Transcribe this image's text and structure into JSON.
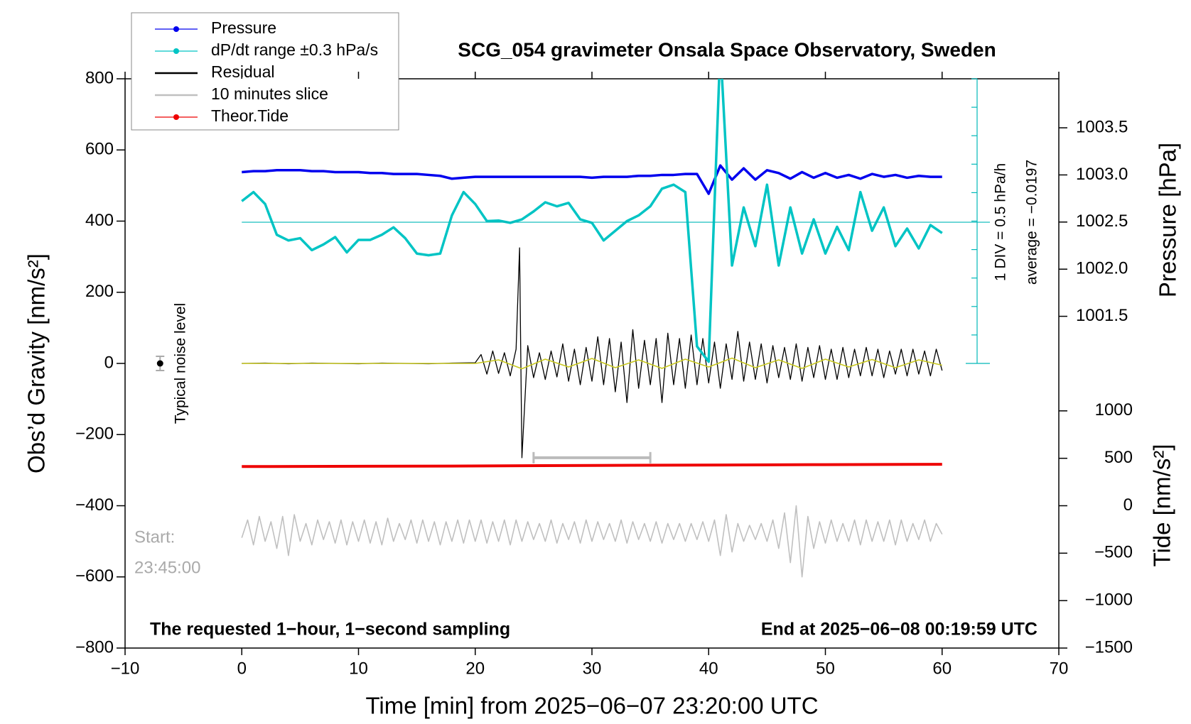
{
  "chart_data": {
    "type": "line",
    "title": "SCG_054 gravimeter Onsala Space Observatory, Sweden",
    "xlabel": "Time [min] from 2025−06−07 23:20:00 UTC",
    "ylabel": "Obs’d Gravity [nm/s²]",
    "y2label": "Pressure [hPa]",
    "y3label": "Tide [nm/s²]",
    "annotations": {
      "div": "1 DIV = 0.5 hPa/h",
      "average": "average = −0.0197",
      "noise": "Typical noise level",
      "start": "Start:",
      "start_time": "23:45:00",
      "sampling": "The requested 1−hour, 1−second sampling",
      "end": "End at 2025−06−08 00:19:59 UTC"
    },
    "xlim": [
      -10,
      70
    ],
    "xticks": [
      {
        "value": -10,
        "label": "−10"
      },
      0,
      10,
      20,
      30,
      40,
      50,
      60,
      70
    ],
    "ylim": [
      -800,
      800
    ],
    "yticks": [
      {
        "value": -800,
        "label": "−800"
      },
      {
        "value": -600,
        "label": "−600"
      },
      {
        "value": -400,
        "label": "−400"
      },
      {
        "value": -200,
        "label": "−200"
      },
      0,
      200,
      400,
      600,
      800
    ],
    "y2lim": [
      997.98,
      1004.02
    ],
    "y2ticks": [
      1001.5,
      {
        "value": 1002,
        "label": "1002.0"
      },
      1002.5,
      {
        "value": 1003,
        "label": "1003.0"
      },
      1003.5
    ],
    "y3lim": [
      -1500,
      4500
    ],
    "y3ticks": [
      {
        "value": -1500,
        "label": "−1500"
      },
      {
        "value": -1000,
        "label": "−1000"
      },
      {
        "value": -500,
        "label": "−500"
      },
      0,
      500,
      1000
    ],
    "dpdt_lim": [
      -2.5,
      2.5
    ],
    "dpdt_ticks": [
      -2.5,
      -2,
      -1.5,
      -1,
      -0.5,
      0,
      0.5,
      1,
      1.5,
      2,
      2.5
    ],
    "dpdt_average": -0.0197,
    "series": [
      {
        "name": "Pressure",
        "color": "#0000ee",
        "axis": "y2",
        "markers": true,
        "x": [
          0,
          1,
          2,
          3,
          4,
          5,
          6,
          7,
          8,
          9,
          10,
          11,
          12,
          13,
          14,
          15,
          16,
          17,
          18,
          19,
          20,
          21,
          22,
          23,
          24,
          25,
          26,
          27,
          28,
          29,
          30,
          31,
          32,
          33,
          34,
          35,
          36,
          37,
          38,
          39,
          40,
          41,
          42,
          43,
          44,
          45,
          46,
          47,
          48,
          49,
          50,
          51,
          52,
          53,
          54,
          55,
          56,
          57,
          58,
          59,
          60
        ],
        "values": [
          1003.03,
          1003.04,
          1003.04,
          1003.05,
          1003.05,
          1003.05,
          1003.04,
          1003.04,
          1003.03,
          1003.03,
          1003.03,
          1003.02,
          1003.02,
          1003.01,
          1003.01,
          1003.01,
          1003.0,
          1002.99,
          1002.96,
          1002.97,
          1002.98,
          1002.98,
          1002.98,
          1002.98,
          1002.98,
          1002.98,
          1002.98,
          1002.98,
          1002.98,
          1002.98,
          1002.97,
          1002.98,
          1002.98,
          1002.98,
          1002.99,
          1002.99,
          1003.0,
          1003.0,
          1003.01,
          1003.01,
          1002.8,
          1003.1,
          1002.95,
          1003.07,
          1002.95,
          1003.05,
          1003.02,
          1002.96,
          1003.03,
          1002.97,
          1003.02,
          1002.97,
          1003.0,
          1002.96,
          1003.01,
          1002.98,
          1003.0,
          1002.97,
          1002.99,
          1002.98,
          1002.98
        ]
      },
      {
        "name": "dP/dt range ±0.3 hPa/s",
        "color": "#00c4c4",
        "axis": "dpdt",
        "markers": true,
        "x": [
          0,
          1,
          2,
          3,
          4,
          5,
          6,
          7,
          8,
          9,
          10,
          11,
          12,
          13,
          14,
          15,
          16,
          17,
          18,
          19,
          20,
          21,
          22,
          23,
          24,
          25,
          26,
          27,
          28,
          29,
          30,
          31,
          32,
          33,
          34,
          35,
          36,
          37,
          38,
          39,
          40,
          41,
          42,
          43,
          44,
          45,
          46,
          47,
          48,
          49,
          50,
          51,
          52,
          53,
          54,
          55,
          56,
          57,
          58,
          59,
          60
        ],
        "values": [
          0.35,
          0.51,
          0.3,
          -0.24,
          -0.34,
          -0.3,
          -0.51,
          -0.41,
          -0.28,
          -0.55,
          -0.33,
          -0.33,
          -0.24,
          -0.11,
          -0.3,
          -0.57,
          -0.6,
          -0.57,
          0.1,
          0.51,
          0.3,
          0.0,
          0.01,
          -0.03,
          0.03,
          0.17,
          0.33,
          0.26,
          0.32,
          0.03,
          -0.03,
          -0.34,
          -0.17,
          0.0,
          0.1,
          0.26,
          0.57,
          0.64,
          0.51,
          -2.2,
          -2.47,
          3.07,
          -0.78,
          0.24,
          -0.44,
          0.64,
          -0.78,
          0.24,
          -0.57,
          0.03,
          -0.57,
          -0.1,
          -0.51,
          0.51,
          -0.17,
          0.24,
          -0.44,
          -0.13,
          -0.48,
          -0.07,
          -0.21
        ]
      },
      {
        "name": "Residual",
        "color": "#000000",
        "x": [
          0,
          2,
          4,
          6,
          8,
          10,
          12,
          14,
          16,
          18,
          20,
          20.5,
          21,
          21.5,
          22,
          22.5,
          23,
          23.5,
          23.8,
          24,
          24.5,
          25,
          25.5,
          26,
          26.5,
          27,
          27.5,
          28,
          28.5,
          29,
          29.5,
          30,
          30.5,
          31,
          31.5,
          32,
          32.5,
          33,
          33.5,
          34,
          34.5,
          35,
          35.5,
          36,
          36.5,
          37,
          37.5,
          38,
          38.5,
          39,
          39.5,
          40,
          40.5,
          41,
          41.5,
          42,
          42.5,
          43,
          43.5,
          44,
          44.5,
          45,
          45.5,
          46,
          46.5,
          47,
          47.5,
          48,
          48.5,
          49,
          49.5,
          50,
          50.5,
          51,
          51.5,
          52,
          52.5,
          53,
          53.5,
          54,
          54.5,
          55,
          55.5,
          56,
          56.5,
          57,
          57.5,
          58,
          58.5,
          59,
          59.5,
          60
        ],
        "values": [
          0,
          1,
          -1,
          1,
          0,
          -1,
          1,
          0,
          -1,
          1,
          2,
          25,
          -30,
          35,
          -28,
          30,
          -35,
          40,
          325,
          -265,
          50,
          -40,
          30,
          -45,
          35,
          -38,
          55,
          -50,
          40,
          -60,
          45,
          -50,
          75,
          -60,
          70,
          -80,
          60,
          -110,
          95,
          -70,
          65,
          -60,
          70,
          -110,
          85,
          -60,
          70,
          -70,
          80,
          -60,
          70,
          -55,
          60,
          -70,
          55,
          -45,
          90,
          -50,
          60,
          -45,
          55,
          -55,
          50,
          -40,
          45,
          -45,
          55,
          -50,
          45,
          -40,
          50,
          -45,
          40,
          -45,
          45,
          -40,
          40,
          -35,
          45,
          -35,
          40,
          -40,
          35,
          -30,
          40,
          -35,
          40,
          -30,
          35,
          -35,
          40,
          -20
        ]
      },
      {
        "name": "10 minutes slice",
        "color": "#c0c0c0",
        "x": [
          0,
          0.5,
          1,
          1.5,
          2,
          2.5,
          3,
          3.5,
          4,
          4.5,
          5,
          5.5,
          6,
          6.5,
          7,
          7.5,
          8,
          8.5,
          9,
          9.5,
          10,
          10.5,
          11,
          11.5,
          12,
          12.5,
          13,
          13.5,
          14,
          14.5,
          15,
          15.5,
          16,
          16.5,
          17,
          17.5,
          18,
          18.5,
          19,
          19.5,
          20,
          20.5,
          21,
          21.5,
          22,
          22.5,
          23,
          23.5,
          24,
          24.5,
          25,
          25.5,
          26,
          26.5,
          27,
          27.5,
          28,
          28.5,
          29,
          29.5,
          30,
          30.5,
          31,
          31.5,
          32,
          32.5,
          33,
          33.5,
          34,
          34.5,
          35,
          35.5,
          36,
          36.5,
          37,
          37.5,
          38,
          38.5,
          39,
          39.5,
          40,
          40.5,
          41,
          41.5,
          42,
          42.5,
          43,
          43.5,
          44,
          44.5,
          45,
          45.5,
          46,
          46.5,
          47,
          47.5,
          48,
          48.5,
          49,
          49.5,
          50,
          50.5,
          51,
          51.5,
          52,
          52.5,
          53,
          53.5,
          54,
          54.5,
          55,
          55.5,
          56,
          56.5,
          57,
          57.5,
          58,
          58.5,
          59,
          59.5,
          60
        ],
        "values": [
          -490,
          -440,
          -510,
          -430,
          -500,
          -445,
          -520,
          -430,
          -540,
          -425,
          -500,
          -450,
          -510,
          -440,
          -495,
          -445,
          -505,
          -440,
          -510,
          -445,
          -500,
          -440,
          -505,
          -445,
          -510,
          -435,
          -500,
          -450,
          -495,
          -440,
          -505,
          -440,
          -500,
          -445,
          -510,
          -445,
          -500,
          -440,
          -505,
          -440,
          -500,
          -440,
          -505,
          -445,
          -500,
          -440,
          -510,
          -440,
          -500,
          -445,
          -495,
          -450,
          -500,
          -440,
          -505,
          -450,
          -495,
          -445,
          -505,
          -440,
          -500,
          -445,
          -495,
          -450,
          -500,
          -440,
          -505,
          -445,
          -495,
          -450,
          -500,
          -445,
          -505,
          -450,
          -495,
          -450,
          -500,
          -450,
          -495,
          -445,
          -500,
          -440,
          -540,
          -425,
          -530,
          -450,
          -500,
          -455,
          -495,
          -450,
          -500,
          -440,
          -520,
          -420,
          -560,
          -400,
          -600,
          -430,
          -520,
          -445,
          -505,
          -440,
          -500,
          -450,
          -500,
          -440,
          -510,
          -440,
          -500,
          -445,
          -500,
          -440,
          -510,
          -440,
          -500,
          -450,
          -495,
          -440,
          -500,
          -450,
          -480
        ]
      },
      {
        "name": "Theor.Tide",
        "color": "#ee0000",
        "axis": "y3",
        "markers": true,
        "x": [
          0,
          18,
          30,
          50,
          60
        ],
        "values": [
          413,
          418,
          425,
          433,
          437
        ]
      },
      {
        "color": "#c8c820",
        "x": [
          0,
          5,
          10,
          15,
          20,
          22,
          24,
          26,
          28,
          30,
          32,
          34,
          36,
          38,
          40,
          42,
          44,
          46,
          48,
          50,
          52,
          54,
          56,
          58,
          60
        ],
        "values": [
          0,
          0,
          0,
          0,
          0,
          10,
          -15,
          12,
          -10,
          14,
          -12,
          10,
          -14,
          12,
          -10,
          15,
          -12,
          10,
          -14,
          12,
          -10,
          11,
          -12,
          10,
          -5
        ]
      }
    ],
    "slice_range": {
      "x": [
        25,
        35
      ],
      "y": -265
    },
    "noise": {
      "x": -7,
      "value": 0,
      "error": 20
    }
  }
}
